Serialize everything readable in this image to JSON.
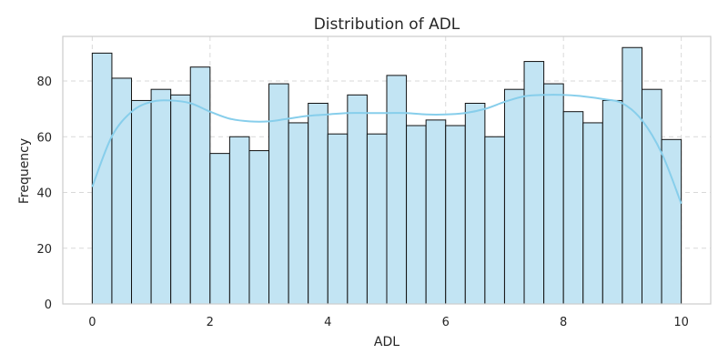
{
  "chart_data": {
    "type": "bar",
    "title": "Distribution of ADL",
    "xlabel": "ADL",
    "ylabel": "Frequency",
    "xlim": [
      -0.5,
      10.5
    ],
    "ylim": [
      0,
      96
    ],
    "xticks": [
      0,
      2,
      4,
      6,
      8,
      10
    ],
    "yticks": [
      0,
      20,
      40,
      60,
      80
    ],
    "grid": true,
    "bin_start": 0,
    "bin_end": 10,
    "values": [
      90,
      81,
      73,
      77,
      75,
      85,
      54,
      60,
      55,
      79,
      65,
      72,
      61,
      75,
      61,
      82,
      64,
      66,
      64,
      72,
      60,
      77,
      87,
      79,
      69,
      65,
      73,
      92,
      77,
      59
    ],
    "kde": {
      "x": [
        0,
        0.33,
        0.67,
        1.0,
        1.33,
        1.67,
        2.0,
        2.33,
        2.67,
        3.0,
        3.33,
        3.67,
        4.0,
        4.33,
        4.67,
        5.0,
        5.33,
        5.67,
        6.0,
        6.33,
        6.67,
        7.0,
        7.33,
        7.67,
        8.0,
        8.33,
        8.67,
        9.0,
        9.33,
        9.67,
        10.0
      ],
      "y": [
        42,
        60,
        69,
        72.5,
        73,
        72,
        69,
        66.5,
        65.5,
        65.5,
        66.5,
        67.5,
        68,
        68.5,
        68.5,
        68.5,
        68.5,
        68,
        68,
        68.5,
        70,
        72.5,
        74.5,
        75,
        75,
        74.5,
        73.5,
        72,
        66,
        54,
        36
      ]
    },
    "colors": {
      "bar_fill": "#c2e4f3",
      "bar_edge": "#111111",
      "kde_line": "#87ceeb",
      "grid": "#d9d9d9",
      "axes_frame": "#cccccc",
      "text": "#262626"
    }
  }
}
